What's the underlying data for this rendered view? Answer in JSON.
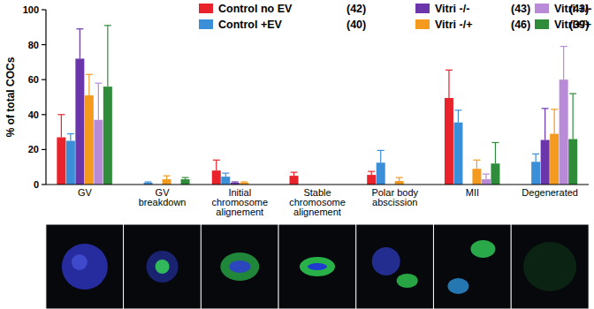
{
  "chart_data": {
    "type": "bar",
    "y_label": "% of total COCs",
    "categories": [
      "GV",
      "GV breakdown",
      "Initial chromosome alignement",
      "Stable chromosome alignement",
      "Polar body abscission",
      "MII",
      "Degenerated"
    ],
    "ylim": [
      0,
      100
    ],
    "yticks": [
      0,
      20,
      40,
      60,
      80,
      100
    ],
    "grid": false,
    "legend": "top",
    "series": [
      {
        "name": "Control no EV",
        "n_label": "(42)",
        "color": "#e8232b",
        "values": [
          27,
          0,
          8,
          5,
          5.5,
          49.5,
          0
        ],
        "errors": [
          13,
          0,
          6,
          2,
          2,
          16,
          0
        ]
      },
      {
        "name": "Control +EV",
        "n_label": "(40)",
        "color": "#3b8fd8",
        "values": [
          25,
          1,
          4.5,
          0,
          12.5,
          35.5,
          13
        ],
        "errors": [
          4,
          0.5,
          2,
          0,
          7,
          7,
          4.5
        ]
      },
      {
        "name": "Vitri -/-",
        "n_label": "(43)",
        "color": "#6a36a9",
        "values": [
          72,
          0,
          1,
          0,
          0,
          0,
          25.5
        ],
        "errors": [
          17,
          0,
          0.5,
          0,
          0,
          0,
          18
        ]
      },
      {
        "name": "Vitri -/+",
        "n_label": "(46)",
        "color": "#f39a1f",
        "values": [
          51,
          3,
          1,
          0,
          2,
          9,
          29
        ],
        "errors": [
          12,
          2,
          0.5,
          0,
          2,
          5,
          14
        ]
      },
      {
        "name": "Vitri +/-",
        "n_label": "(43)",
        "color": "#b88ad8",
        "values": [
          37,
          0,
          0,
          0,
          0,
          3,
          60
        ],
        "errors": [
          21,
          0,
          0,
          0,
          0,
          3,
          19
        ]
      },
      {
        "name": "Vitri+/+",
        "n_label": "(39)",
        "color": "#2f8c3b",
        "values": [
          56,
          3,
          0,
          0,
          0,
          12,
          26
        ],
        "errors": [
          35,
          1,
          0,
          0,
          0,
          12,
          26
        ]
      }
    ]
  }
}
